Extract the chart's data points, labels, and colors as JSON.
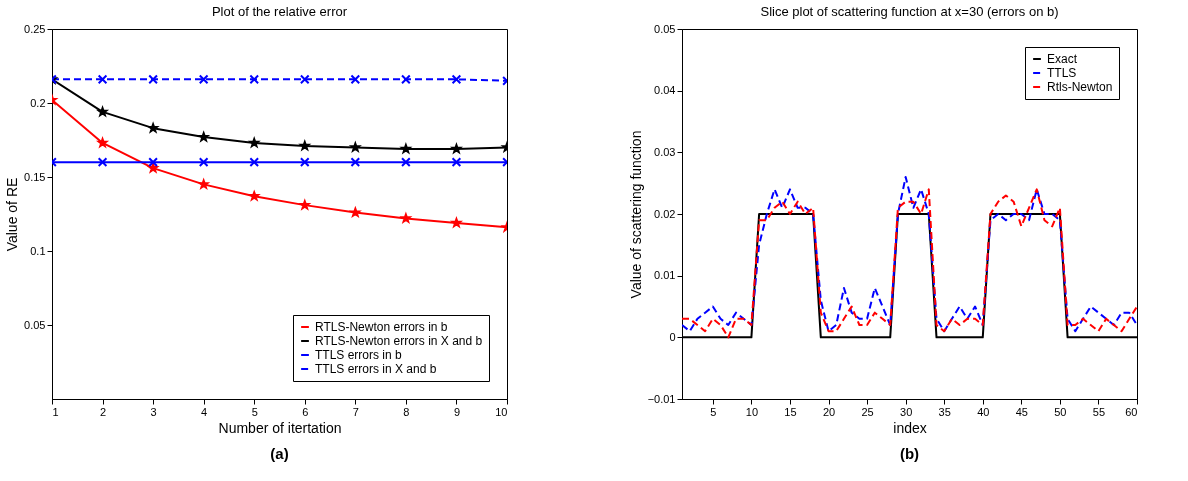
{
  "chart_data": [
    {
      "type": "line",
      "title": "Plot of the relative error",
      "xlabel": "Number of itertation",
      "ylabel": "Value of RE",
      "annotations": [
        "(a)"
      ],
      "x": [
        1,
        2,
        3,
        4,
        5,
        6,
        7,
        8,
        9,
        10
      ],
      "xlim": [
        1,
        10
      ],
      "xticks": [
        1,
        2,
        3,
        4,
        5,
        6,
        7,
        8,
        9,
        10
      ],
      "ylim": [
        0,
        0.25
      ],
      "yticks": [
        0.05,
        0.1,
        0.15,
        0.2,
        0.25
      ],
      "legend": "bottom right",
      "series": [
        {
          "name": "RTLS-Newton errors in b",
          "color": "#ff0000",
          "marker": "star",
          "line_style": "solid",
          "values": [
            0.202,
            0.173,
            0.156,
            0.145,
            0.137,
            0.131,
            0.126,
            0.122,
            0.119,
            0.116
          ]
        },
        {
          "name": "RTLS-Newton errors in X and b",
          "color": "#000000",
          "marker": "star",
          "line_style": "solid",
          "values": [
            0.216,
            0.194,
            0.183,
            0.177,
            0.173,
            0.171,
            0.17,
            0.169,
            0.169,
            0.17
          ]
        },
        {
          "name": "TTLS errors in b",
          "color": "#0000ff",
          "marker": "cross",
          "line_style": "solid",
          "values": [
            0.16,
            0.16,
            0.16,
            0.16,
            0.16,
            0.16,
            0.16,
            0.16,
            0.16,
            0.16
          ]
        },
        {
          "name": "TTLS errors in X and b",
          "color": "#0000ff",
          "marker": "cross",
          "line_style": "dashed",
          "values": [
            0.216,
            0.216,
            0.216,
            0.216,
            0.216,
            0.216,
            0.216,
            0.216,
            0.216,
            0.215
          ]
        }
      ]
    },
    {
      "type": "line",
      "title": "Slice plot of scattering function at x=30 (errors on b)",
      "xlabel": "index",
      "ylabel": "Value of scattering function",
      "annotations": [
        "(b)"
      ],
      "x": [
        1,
        2,
        3,
        4,
        5,
        6,
        7,
        8,
        9,
        10,
        11,
        12,
        13,
        14,
        15,
        16,
        17,
        18,
        19,
        20,
        21,
        22,
        23,
        24,
        25,
        26,
        27,
        28,
        29,
        30,
        31,
        32,
        33,
        34,
        35,
        36,
        37,
        38,
        39,
        40,
        41,
        42,
        43,
        44,
        45,
        46,
        47,
        48,
        49,
        50,
        51,
        52,
        53,
        54,
        55,
        56,
        57,
        58,
        59,
        60
      ],
      "xlim": [
        1,
        60
      ],
      "xticks": [
        5,
        10,
        15,
        20,
        25,
        30,
        35,
        40,
        45,
        50,
        55,
        60
      ],
      "ylim": [
        -0.01,
        0.05
      ],
      "yticks": [
        -0.01,
        0,
        0.01,
        0.02,
        0.03,
        0.04,
        0.05
      ],
      "legend": "top right",
      "series": [
        {
          "name": "Exact",
          "color": "#000000",
          "marker": "none",
          "line_style": "solid",
          "values": [
            0,
            0,
            0,
            0,
            0,
            0,
            0,
            0,
            0,
            0,
            0.02,
            0.02,
            0.02,
            0.02,
            0.02,
            0.02,
            0.02,
            0.02,
            0,
            0,
            0,
            0,
            0,
            0,
            0,
            0,
            0,
            0,
            0.02,
            0.02,
            0.02,
            0.02,
            0.02,
            0,
            0,
            0,
            0,
            0,
            0,
            0,
            0.02,
            0.02,
            0.02,
            0.02,
            0.02,
            0.02,
            0.02,
            0.02,
            0.02,
            0.02,
            0,
            0,
            0,
            0,
            0,
            0,
            0,
            0,
            0,
            0
          ]
        },
        {
          "name": "TTLS",
          "color": "#0000ff",
          "marker": "none",
          "line_style": "dashed",
          "values": [
            0.002,
            0.001,
            0.003,
            0.004,
            0.005,
            0.003,
            0.002,
            0.004,
            0.003,
            0.002,
            0.015,
            0.02,
            0.024,
            0.021,
            0.024,
            0.021,
            0.021,
            0.02,
            0.006,
            0.001,
            0.002,
            0.008,
            0.004,
            0.003,
            0.003,
            0.008,
            0.005,
            0.002,
            0.02,
            0.026,
            0.021,
            0.024,
            0.02,
            0.003,
            0.001,
            0.003,
            0.005,
            0.003,
            0.005,
            0.002,
            0.019,
            0.02,
            0.019,
            0.02,
            0.02,
            0.019,
            0.024,
            0.02,
            0.02,
            0.019,
            0.003,
            0.001,
            0.003,
            0.005,
            0.004,
            0.003,
            0.002,
            0.004,
            0.004,
            0.002
          ]
        },
        {
          "name": "Rtls-Newton",
          "color": "#ff0000",
          "marker": "none",
          "line_style": "dashed",
          "values": [
            0.003,
            0.003,
            0.002,
            0.001,
            0.003,
            0.002,
            0.0,
            0.003,
            0.003,
            0.002,
            0.019,
            0.019,
            0.021,
            0.022,
            0.02,
            0.022,
            0.02,
            0.021,
            0.004,
            0.001,
            0.001,
            0.003,
            0.005,
            0.002,
            0.002,
            0.004,
            0.003,
            0.002,
            0.021,
            0.022,
            0.022,
            0.02,
            0.024,
            0.002,
            0.001,
            0.003,
            0.002,
            0.003,
            0.003,
            0.002,
            0.02,
            0.022,
            0.023,
            0.022,
            0.018,
            0.021,
            0.024,
            0.019,
            0.018,
            0.021,
            0.002,
            0.002,
            0.003,
            0.002,
            0.001,
            0.003,
            0.002,
            0.001,
            0.003,
            0.005
          ]
        }
      ]
    }
  ]
}
